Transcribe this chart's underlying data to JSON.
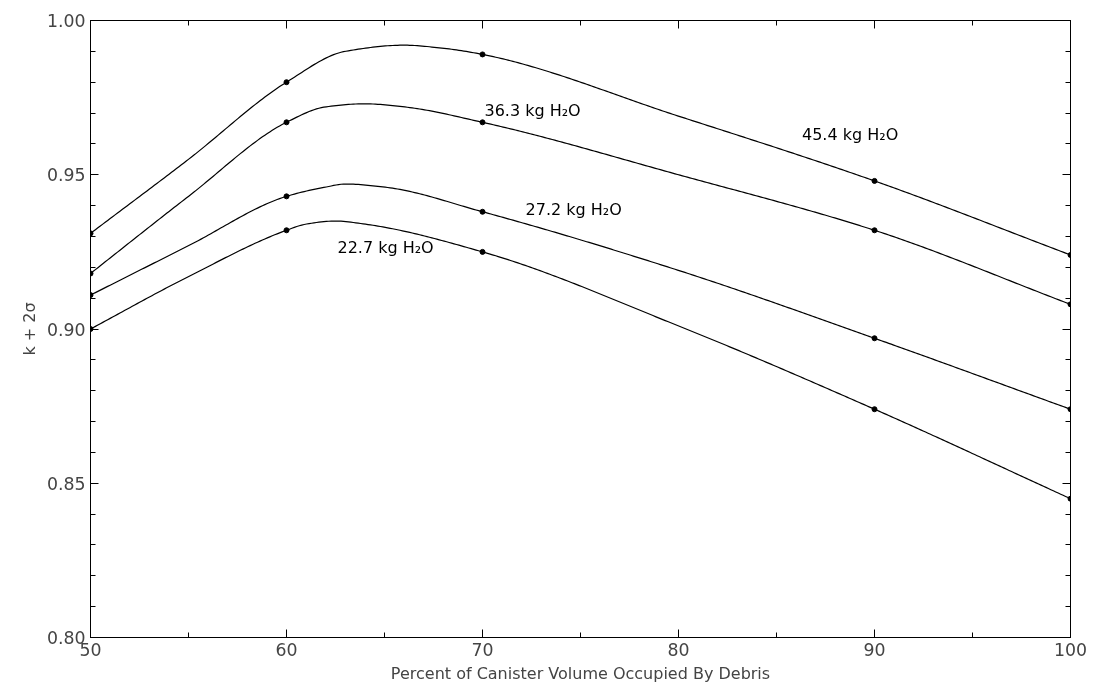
{
  "chart_data": {
    "type": "line",
    "xlabel": "Percent of Canister Volume Occupied By Debris",
    "ylabel": "k + 2σ",
    "xlim": [
      50,
      100
    ],
    "xticks": [
      50,
      60,
      70,
      80,
      90,
      100
    ],
    "ylim": [
      0.8,
      1.0
    ],
    "yticks": [
      {
        "value": 0.8,
        "label": "0.80"
      },
      {
        "value": 0.85,
        "label": "0.85"
      },
      {
        "value": 0.9,
        "label": "0.90"
      },
      {
        "value": 0.95,
        "label": "0.95"
      },
      {
        "value": 1.0,
        "label": "1.00"
      }
    ],
    "grid": false,
    "marker": "none",
    "line_style": "solid",
    "series": [
      {
        "name": "45.4 kg H₂O",
        "color": "#000000",
        "x": [
          50,
          55,
          60,
          63,
          66,
          68,
          70,
          80,
          90,
          100
        ],
        "values": [
          0.931,
          0.955,
          0.98,
          0.99,
          0.992,
          0.991,
          0.989,
          0.969,
          0.948,
          0.924
        ]
      },
      {
        "name": "36.3 kg H₂O",
        "color": "#000000",
        "x": [
          50,
          55,
          60,
          62,
          64,
          66,
          70,
          80,
          90,
          100
        ],
        "values": [
          0.918,
          0.943,
          0.967,
          0.972,
          0.973,
          0.972,
          0.967,
          0.95,
          0.932,
          0.908
        ]
      },
      {
        "name": "27.2 kg H₂O",
        "color": "#000000",
        "x": [
          50,
          55,
          60,
          62,
          63,
          65,
          70,
          80,
          90,
          100
        ],
        "values": [
          0.911,
          0.927,
          0.943,
          0.946,
          0.947,
          0.946,
          0.938,
          0.919,
          0.897,
          0.874
        ]
      },
      {
        "name": "22.7 kg H₂O",
        "color": "#000000",
        "x": [
          50,
          55,
          60,
          61,
          62.5,
          64,
          70,
          80,
          90,
          100
        ],
        "values": [
          0.9,
          0.917,
          0.932,
          0.934,
          0.935,
          0.934,
          0.925,
          0.901,
          0.874,
          0.845
        ]
      },
      {
        "type": "scatter",
        "marker": "circle",
        "color": "#000000",
        "x": [
          50,
          60,
          70,
          90,
          100
        ],
        "values": [
          0.931,
          0.98,
          0.989,
          0.948,
          0.924
        ]
      },
      {
        "type": "scatter",
        "marker": "circle",
        "color": "#000000",
        "x": [
          50,
          60,
          70,
          90,
          100
        ],
        "values": [
          0.918,
          0.967,
          0.967,
          0.932,
          0.908
        ]
      },
      {
        "type": "scatter",
        "marker": "circle",
        "color": "#000000",
        "x": [
          50,
          60,
          70,
          90,
          100
        ],
        "values": [
          0.911,
          0.943,
          0.938,
          0.897,
          0.874
        ]
      },
      {
        "type": "scatter",
        "marker": "circle",
        "color": "#000000",
        "x": [
          50,
          60,
          70,
          90,
          100
        ],
        "values": [
          0.9,
          0.932,
          0.925,
          0.874,
          0.845
        ]
      }
    ]
  }
}
